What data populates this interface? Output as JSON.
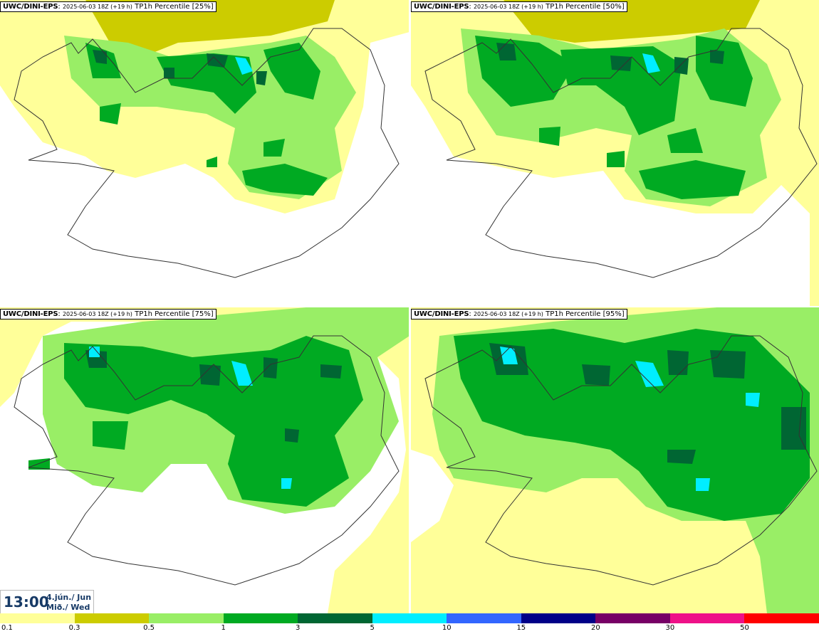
{
  "panels": [
    {
      "model": "UWC/DINI-EPS",
      "run": "2025-06-03 18Z (+19 h)",
      "field": "TP1h Percentile [25%]",
      "percentile": 25
    },
    {
      "model": "UWC/DINI-EPS",
      "run": "2025-06-03 18Z (+19 h)",
      "field": "TP1h Percentile [50%]",
      "percentile": 50
    },
    {
      "model": "UWC/DINI-EPS",
      "run": "2025-06-03 18Z (+19 h)",
      "field": "TP1h Percentile [75%]",
      "percentile": 75
    },
    {
      "model": "UWC/DINI-EPS",
      "run": "2025-06-03 18Z (+19 h)",
      "field": "TP1h Percentile [95%]",
      "percentile": 95
    }
  ],
  "valid_time": {
    "time": "13:00",
    "date_line1": "4.jún./ Jun",
    "date_line2": "Mið./ Wed"
  },
  "legend": {
    "labels": [
      "0.1",
      "0.3",
      "0.5",
      "1",
      "3",
      "5",
      "10",
      "15",
      "20",
      "30",
      "50"
    ],
    "colors": [
      "#ffff99",
      "#cccc00",
      "#99ee66",
      "#00aa22",
      "#006633",
      "#00eeff",
      "#3366ff",
      "#000088",
      "#770066",
      "#ee1188",
      "#ff0000"
    ]
  },
  "colors": {
    "title_text": "#173a66",
    "coast": "#333333",
    "lowest": "#ffff99"
  }
}
